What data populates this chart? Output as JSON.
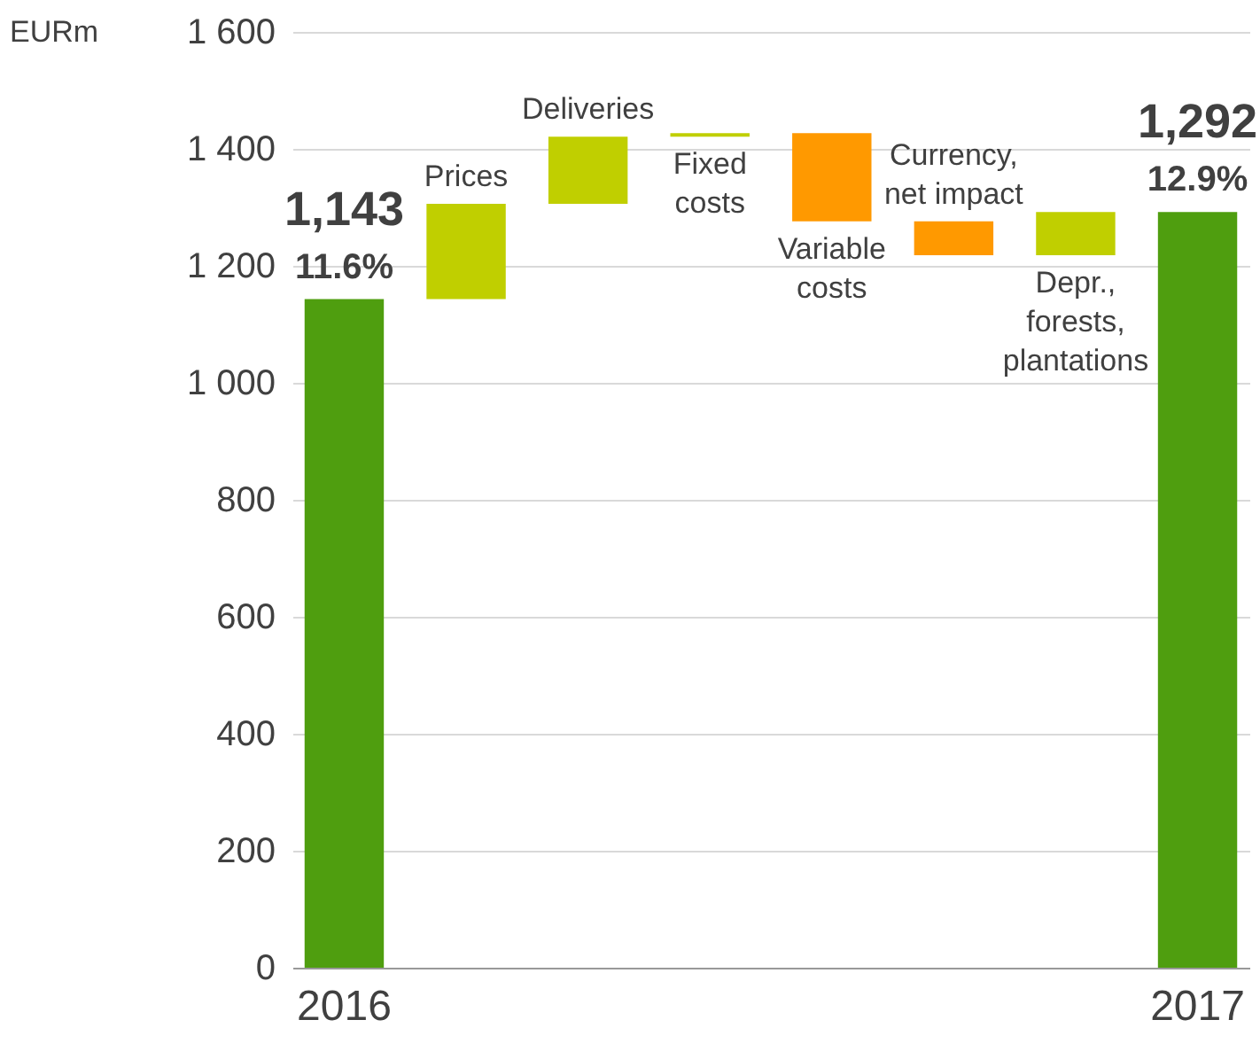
{
  "chart_data": {
    "type": "bar",
    "ylabel": "EURm",
    "categories": [
      "2016",
      "Prices",
      "Deliveries",
      "Fixed costs",
      "Variable costs",
      "Currency, net impact",
      "Depr., forests, plantations",
      "2017"
    ],
    "base": [
      0,
      1143,
      1306,
      1421,
      1427,
      1276,
      1218,
      0
    ],
    "values": [
      1143,
      163,
      115,
      6,
      -151,
      -58,
      74,
      1292
    ],
    "colors": [
      "#4f9e0f",
      "#c0cf00",
      "#c0cf00",
      "#c0cf00",
      "#ff9900",
      "#ff9900",
      "#c0cf00",
      "#4f9e0f"
    ],
    "value_labels": [
      "1,143",
      null,
      null,
      null,
      null,
      null,
      null,
      "1,292"
    ],
    "annotations": [
      {
        "text": "11.6%",
        "x": "2016",
        "y": 1143
      },
      {
        "text": "12.9%",
        "x": "2017",
        "y": 1292
      }
    ],
    "ylim": [
      0,
      1600
    ],
    "yticks": [
      0,
      200,
      400,
      600,
      800,
      {
        "value": 1000,
        "label": "1 000"
      },
      {
        "value": 1200,
        "label": "1 200"
      },
      {
        "value": 1400,
        "label": "1 400"
      },
      {
        "value": 1600,
        "label": "1 600"
      }
    ],
    "grid": "y"
  }
}
